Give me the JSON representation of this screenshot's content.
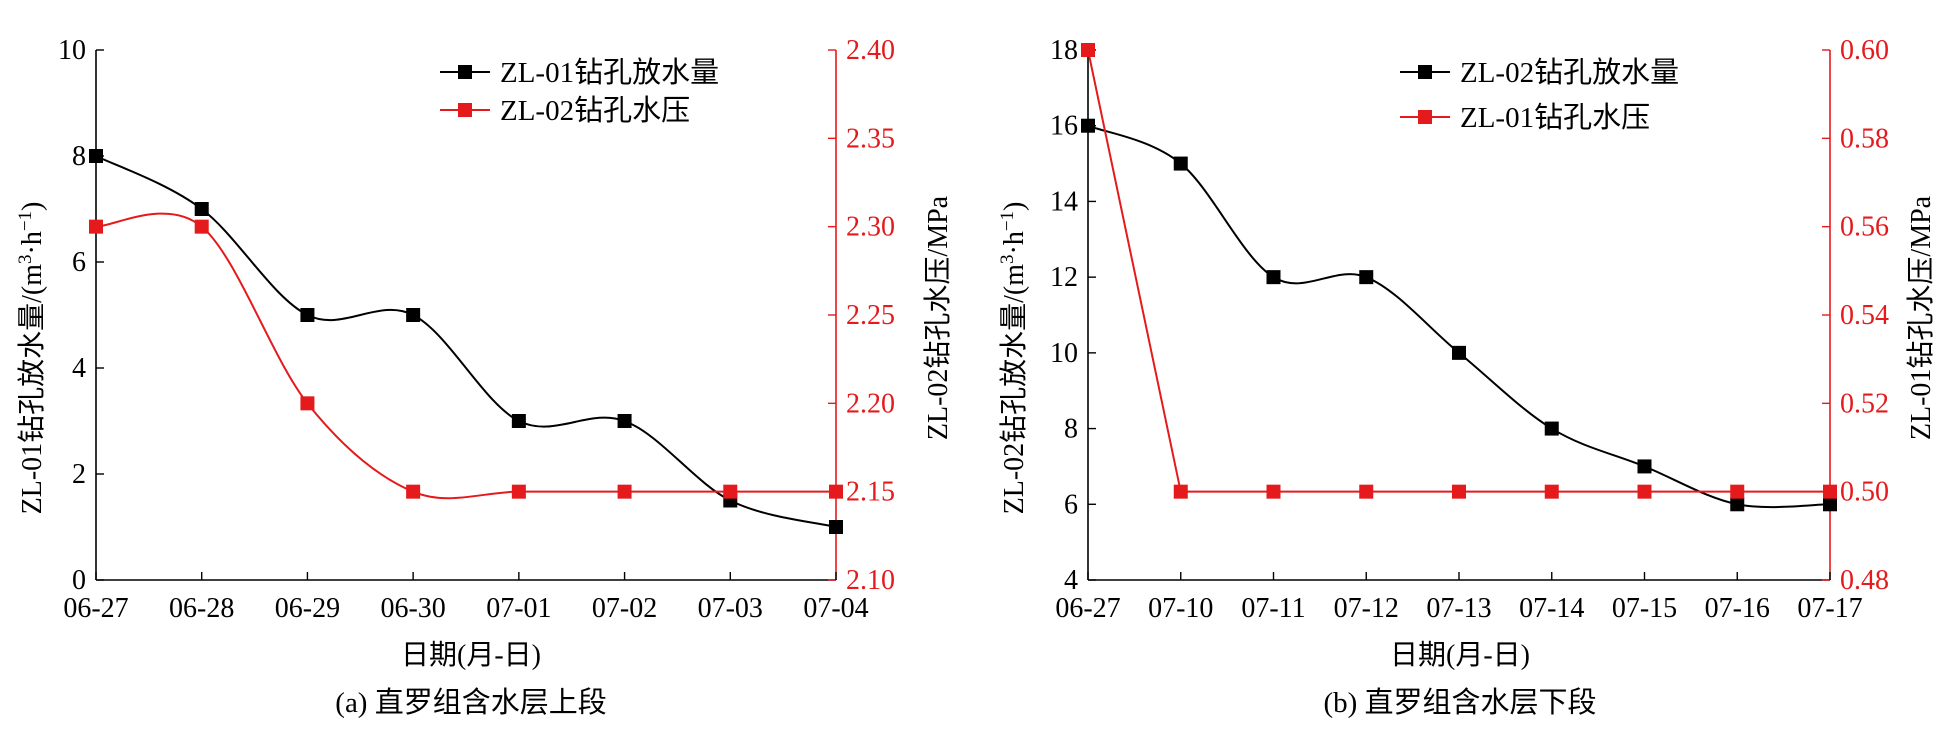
{
  "colors": {
    "black_series": "#000000",
    "red_series": "#e41a1c",
    "axis": "#000000"
  },
  "chart_data": [
    {
      "type": "line",
      "smooth": true,
      "caption": "(a) 直罗组含水层上段",
      "xlabel": "日期(月-日)",
      "categories": [
        "06-27",
        "06-28",
        "06-29",
        "06-30",
        "07-01",
        "07-02",
        "07-03",
        "07-04"
      ],
      "ylabel_left": "ZL-01钻孔放水量/(m",
      "ylabel_left_sup1": "3",
      "ylabel_left_mid": "·h",
      "ylabel_left_sup2": "−1",
      "ylabel_left_end": ")",
      "ylabel_right": "ZL-02钻孔水压/MPa",
      "ylim_left": [
        0,
        10
      ],
      "yticks_left": [
        "0",
        "2",
        "4",
        "6",
        "8",
        "10"
      ],
      "ylim_right": [
        2.1,
        2.4
      ],
      "yticks_right": [
        "2.10",
        "2.15",
        "2.20",
        "2.25",
        "2.30",
        "2.35",
        "2.40"
      ],
      "legend_position": "top-right",
      "series": [
        {
          "name": "ZL-01钻孔放水量",
          "axis": "left",
          "color": "#000000",
          "smooth": true,
          "values": [
            8,
            7,
            5,
            5,
            3,
            3,
            1.5,
            1
          ]
        },
        {
          "name": "ZL-02钻孔水压",
          "axis": "right",
          "color": "#e41a1c",
          "smooth": true,
          "values": [
            2.3,
            2.3,
            2.2,
            2.15,
            2.15,
            2.15,
            2.15,
            2.15
          ]
        }
      ]
    },
    {
      "type": "line",
      "caption": "(b) 直罗组含水层下段",
      "xlabel": "日期(月-日)",
      "categories": [
        "06-27",
        "07-10",
        "07-11",
        "07-12",
        "07-13",
        "07-14",
        "07-15",
        "07-16",
        "07-17"
      ],
      "ylabel_left": "ZL-02钻孔放水量/(m",
      "ylabel_left_sup1": "3",
      "ylabel_left_mid": "·h",
      "ylabel_left_sup2": "−1",
      "ylabel_left_end": ")",
      "ylabel_right": "ZL-01钻孔水压/MPa",
      "ylim_left": [
        4,
        18
      ],
      "yticks_left": [
        "4",
        "6",
        "8",
        "10",
        "12",
        "14",
        "16",
        "18"
      ],
      "ylim_right": [
        0.48,
        0.6
      ],
      "yticks_right": [
        "0.48",
        "0.50",
        "0.52",
        "0.54",
        "0.56",
        "0.58",
        "0.60"
      ],
      "legend_position": "top-right",
      "series": [
        {
          "name": "ZL-02钻孔放水量",
          "axis": "left",
          "color": "#000000",
          "smooth": true,
          "values": [
            16,
            15,
            12,
            12,
            10,
            8,
            7,
            6,
            6
          ]
        },
        {
          "name": "ZL-01钻孔水压",
          "axis": "right",
          "color": "#e41a1c",
          "smooth": false,
          "values": [
            0.6,
            0.5,
            0.5,
            0.5,
            0.5,
            0.5,
            0.5,
            0.5,
            0.5
          ]
        }
      ]
    }
  ]
}
